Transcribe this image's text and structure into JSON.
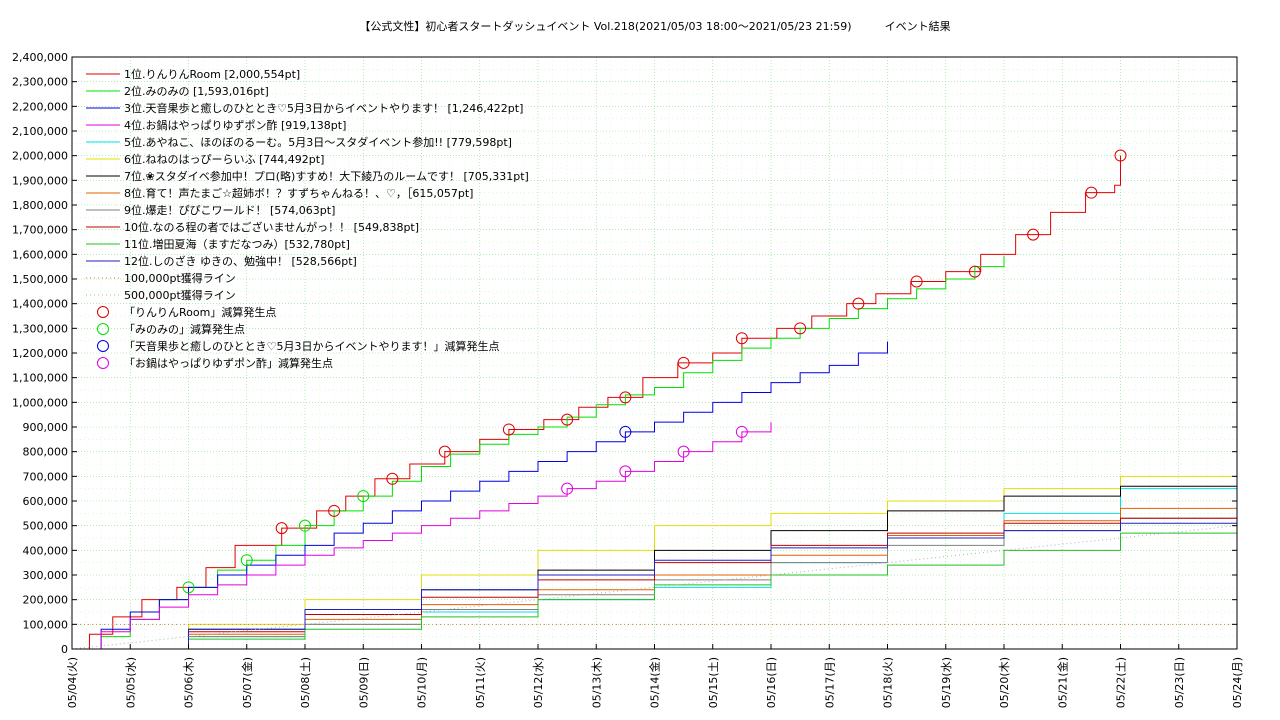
{
  "chart_data": {
    "type": "line",
    "title": "【公式文性】初心者スタートダッシュイベント Vol.218(2021/05/03 18:00〜2021/05/23 21:59)　　　イベント結果",
    "xlabel": "",
    "ylabel": "",
    "ylim": [
      0,
      2400000
    ],
    "y_ticks": [
      "0",
      "100,000",
      "200,000",
      "300,000",
      "400,000",
      "500,000",
      "600,000",
      "700,000",
      "800,000",
      "900,000",
      "1,000,000",
      "1,100,000",
      "1,200,000",
      "1,300,000",
      "1,400,000",
      "1,500,000",
      "1,600,000",
      "1,700,000",
      "1,800,000",
      "1,900,000",
      "2,000,000",
      "2,100,000",
      "2,200,000",
      "2,300,000",
      "2,400,000"
    ],
    "x_range": [
      0,
      20
    ],
    "x_ticks": [
      "05/04(火)",
      "05/05(水)",
      "05/06(木)",
      "05/07(金)",
      "05/08(土)",
      "05/09(日)",
      "05/10(月)",
      "05/11(火)",
      "05/12(水)",
      "05/13(木)",
      "05/14(金)",
      "05/15(土)",
      "05/16(日)",
      "05/17(月)",
      "05/18(火)",
      "05/19(水)",
      "05/20(木)",
      "05/21(金)",
      "05/22(土)",
      "05/23(日)",
      "05/24(月)"
    ],
    "grid": true,
    "legend_position": "top-left",
    "series": [
      {
        "name": "1位.りんりんRoom [2,000,554pt]",
        "color": "#e00000",
        "style": "step",
        "points": [
          [
            0,
            0
          ],
          [
            0.3,
            60000
          ],
          [
            0.7,
            130000
          ],
          [
            1.2,
            200000
          ],
          [
            1.8,
            250000
          ],
          [
            2.3,
            330000
          ],
          [
            2.8,
            420000
          ],
          [
            3.6,
            490000
          ],
          [
            4.2,
            560000
          ],
          [
            4.7,
            620000
          ],
          [
            5.2,
            690000
          ],
          [
            5.8,
            750000
          ],
          [
            6.4,
            800000
          ],
          [
            7.0,
            850000
          ],
          [
            7.5,
            890000
          ],
          [
            8.1,
            930000
          ],
          [
            8.7,
            980000
          ],
          [
            9.2,
            1020000
          ],
          [
            9.8,
            1100000
          ],
          [
            10.4,
            1160000
          ],
          [
            11.0,
            1200000
          ],
          [
            11.5,
            1260000
          ],
          [
            12.1,
            1300000
          ],
          [
            12.7,
            1350000
          ],
          [
            13.3,
            1400000
          ],
          [
            13.8,
            1440000
          ],
          [
            14.4,
            1490000
          ],
          [
            15.0,
            1530000
          ],
          [
            15.6,
            1600000
          ],
          [
            16.2,
            1680000
          ],
          [
            16.8,
            1770000
          ],
          [
            17.4,
            1850000
          ],
          [
            17.9,
            1880000
          ],
          [
            18.0,
            2000554
          ]
        ]
      },
      {
        "name": "2位.みのみの [1,593,016pt]",
        "color": "#00e000",
        "style": "step",
        "points": [
          [
            0,
            0
          ],
          [
            0.5,
            50000
          ],
          [
            1.0,
            120000
          ],
          [
            1.5,
            200000
          ],
          [
            2.0,
            250000
          ],
          [
            2.5,
            320000
          ],
          [
            3.0,
            360000
          ],
          [
            3.5,
            420000
          ],
          [
            4.0,
            500000
          ],
          [
            4.5,
            560000
          ],
          [
            5.0,
            620000
          ],
          [
            5.5,
            680000
          ],
          [
            6.0,
            740000
          ],
          [
            6.5,
            790000
          ],
          [
            7.0,
            830000
          ],
          [
            7.5,
            870000
          ],
          [
            8.0,
            900000
          ],
          [
            8.5,
            940000
          ],
          [
            9.0,
            990000
          ],
          [
            9.5,
            1030000
          ],
          [
            10.0,
            1060000
          ],
          [
            10.5,
            1120000
          ],
          [
            11.0,
            1170000
          ],
          [
            11.5,
            1220000
          ],
          [
            12.0,
            1260000
          ],
          [
            12.5,
            1300000
          ],
          [
            13.0,
            1340000
          ],
          [
            13.5,
            1380000
          ],
          [
            14.0,
            1420000
          ],
          [
            14.5,
            1460000
          ],
          [
            15.0,
            1500000
          ],
          [
            15.5,
            1550000
          ],
          [
            16.0,
            1593016
          ]
        ]
      },
      {
        "name": "3位.天音果歩と癒しのひととき♡5月3日からイベントやります！ [1,246,422pt]",
        "color": "#0000e0",
        "style": "step",
        "points": [
          [
            0,
            0
          ],
          [
            0.5,
            80000
          ],
          [
            1.0,
            150000
          ],
          [
            1.5,
            200000
          ],
          [
            2.0,
            250000
          ],
          [
            2.5,
            300000
          ],
          [
            3.0,
            340000
          ],
          [
            3.5,
            380000
          ],
          [
            4.0,
            420000
          ],
          [
            4.5,
            470000
          ],
          [
            5.0,
            510000
          ],
          [
            5.5,
            560000
          ],
          [
            6.0,
            600000
          ],
          [
            6.5,
            640000
          ],
          [
            7.0,
            680000
          ],
          [
            7.5,
            720000
          ],
          [
            8.0,
            760000
          ],
          [
            8.5,
            800000
          ],
          [
            9.0,
            840000
          ],
          [
            9.5,
            880000
          ],
          [
            10.0,
            920000
          ],
          [
            10.5,
            960000
          ],
          [
            11.0,
            1000000
          ],
          [
            11.5,
            1040000
          ],
          [
            12.0,
            1080000
          ],
          [
            12.5,
            1120000
          ],
          [
            13.0,
            1150000
          ],
          [
            13.5,
            1200000
          ],
          [
            14.0,
            1246422
          ]
        ]
      },
      {
        "name": "4位.お鍋はやっぱりゆずポン酢 [919,138pt]",
        "color": "#e000e0",
        "style": "step",
        "points": [
          [
            0,
            0
          ],
          [
            0.5,
            70000
          ],
          [
            1.0,
            120000
          ],
          [
            1.5,
            170000
          ],
          [
            2.0,
            220000
          ],
          [
            2.5,
            260000
          ],
          [
            3.0,
            300000
          ],
          [
            3.5,
            340000
          ],
          [
            4.0,
            380000
          ],
          [
            4.5,
            410000
          ],
          [
            5.0,
            440000
          ],
          [
            5.5,
            470000
          ],
          [
            6.0,
            500000
          ],
          [
            6.5,
            530000
          ],
          [
            7.0,
            560000
          ],
          [
            7.5,
            590000
          ],
          [
            8.0,
            620000
          ],
          [
            8.5,
            650000
          ],
          [
            9.0,
            680000
          ],
          [
            9.5,
            720000
          ],
          [
            10.0,
            760000
          ],
          [
            10.5,
            800000
          ],
          [
            11.0,
            840000
          ],
          [
            11.5,
            880000
          ],
          [
            12.0,
            919138
          ]
        ]
      },
      {
        "name": "5位.あやねこ、ほのぼのるーむ。5月3日〜スタダイベント参加!! [779,598pt]",
        "color": "#00e0e0",
        "style": "step",
        "points": [
          [
            0,
            0
          ],
          [
            2,
            50000
          ],
          [
            4,
            100000
          ],
          [
            6,
            150000
          ],
          [
            8,
            200000
          ],
          [
            10,
            250000
          ],
          [
            12,
            350000
          ],
          [
            14,
            450000
          ],
          [
            16,
            550000
          ],
          [
            18,
            650000
          ],
          [
            20,
            779598
          ]
        ]
      },
      {
        "name": "6位.ねねのはっぴーらいふ [744,492pt]",
        "color": "#e0e000",
        "style": "step",
        "points": [
          [
            0,
            0
          ],
          [
            2,
            100000
          ],
          [
            4,
            200000
          ],
          [
            6,
            300000
          ],
          [
            8,
            400000
          ],
          [
            10,
            500000
          ],
          [
            12,
            550000
          ],
          [
            14,
            600000
          ],
          [
            16,
            650000
          ],
          [
            18,
            700000
          ],
          [
            20,
            744492
          ]
        ]
      },
      {
        "name": "7位.❀スタダイベ参加中！プロ(略)すすめ！大下綾乃のルームです！ [705,331pt]",
        "color": "#000000",
        "style": "step",
        "points": [
          [
            0,
            0
          ],
          [
            2,
            80000
          ],
          [
            4,
            160000
          ],
          [
            6,
            240000
          ],
          [
            8,
            320000
          ],
          [
            10,
            400000
          ],
          [
            12,
            480000
          ],
          [
            14,
            560000
          ],
          [
            16,
            620000
          ],
          [
            18,
            660000
          ],
          [
            20,
            705331
          ]
        ]
      },
      {
        "name": "8位.育て！声たまご☆超姉ボ！？すずちゃんねる！、♡，［615,057pt]",
        "color": "#e06000",
        "style": "step",
        "points": [
          [
            0,
            0
          ],
          [
            2,
            60000
          ],
          [
            4,
            120000
          ],
          [
            6,
            180000
          ],
          [
            8,
            240000
          ],
          [
            10,
            300000
          ],
          [
            12,
            380000
          ],
          [
            14,
            460000
          ],
          [
            16,
            520000
          ],
          [
            18,
            570000
          ],
          [
            20,
            615057
          ]
        ]
      },
      {
        "name": "9位.爆走！ぴぴこワールド！ [574,063pt]",
        "color": "#808080",
        "style": "step",
        "points": [
          [
            0,
            0
          ],
          [
            2,
            50000
          ],
          [
            4,
            100000
          ],
          [
            6,
            160000
          ],
          [
            8,
            220000
          ],
          [
            10,
            280000
          ],
          [
            12,
            350000
          ],
          [
            14,
            420000
          ],
          [
            16,
            480000
          ],
          [
            18,
            530000
          ],
          [
            20,
            574063
          ]
        ]
      },
      {
        "name": "10位.なのる程の者ではございませんがっ！！ [549,838pt]",
        "color": "#c00000",
        "style": "step",
        "points": [
          [
            0,
            0
          ],
          [
            2,
            70000
          ],
          [
            4,
            140000
          ],
          [
            6,
            210000
          ],
          [
            8,
            280000
          ],
          [
            10,
            350000
          ],
          [
            12,
            420000
          ],
          [
            14,
            470000
          ],
          [
            16,
            510000
          ],
          [
            18,
            530000
          ],
          [
            20,
            549838
          ]
        ]
      },
      {
        "name": "11位.増田夏海（ますだなつみ）[532,780pt]",
        "color": "#20c020",
        "style": "step",
        "points": [
          [
            0,
            0
          ],
          [
            2,
            40000
          ],
          [
            4,
            80000
          ],
          [
            6,
            130000
          ],
          [
            8,
            200000
          ],
          [
            10,
            260000
          ],
          [
            12,
            300000
          ],
          [
            14,
            340000
          ],
          [
            16,
            400000
          ],
          [
            18,
            470000
          ],
          [
            20,
            532780
          ]
        ]
      },
      {
        "name": "12位.しのざき ゆきの、勉強中！ [528,566pt]",
        "color": "#2020c0",
        "style": "step",
        "points": [
          [
            0,
            0
          ],
          [
            2,
            80000
          ],
          [
            4,
            160000
          ],
          [
            6,
            240000
          ],
          [
            8,
            300000
          ],
          [
            10,
            360000
          ],
          [
            12,
            410000
          ],
          [
            14,
            450000
          ],
          [
            16,
            480000
          ],
          [
            18,
            510000
          ],
          [
            20,
            528566
          ]
        ]
      },
      {
        "name": "100,000pt獲得ライン",
        "color": "#e08040",
        "style": "dotted",
        "points": [
          [
            0,
            100000
          ],
          [
            20,
            100000
          ]
        ]
      },
      {
        "name": "500,000pt獲得ライン",
        "color": "#b0b0b0",
        "style": "dotted",
        "points": [
          [
            0,
            0
          ],
          [
            20,
            500000
          ]
        ]
      }
    ],
    "markers": [
      {
        "name": "「りんりんRoom」減算発生点",
        "color": "#e00000"
      },
      {
        "name": "「みのみの」減算発生点",
        "color": "#00e000"
      },
      {
        "name": "「天音果歩と癒しのひととき♡5月3日からイベントやります！」減算発生点",
        "color": "#0000e0"
      },
      {
        "name": "「お鍋はやっぱりゆずポン酢」減算発生点",
        "color": "#e000e0"
      }
    ]
  }
}
